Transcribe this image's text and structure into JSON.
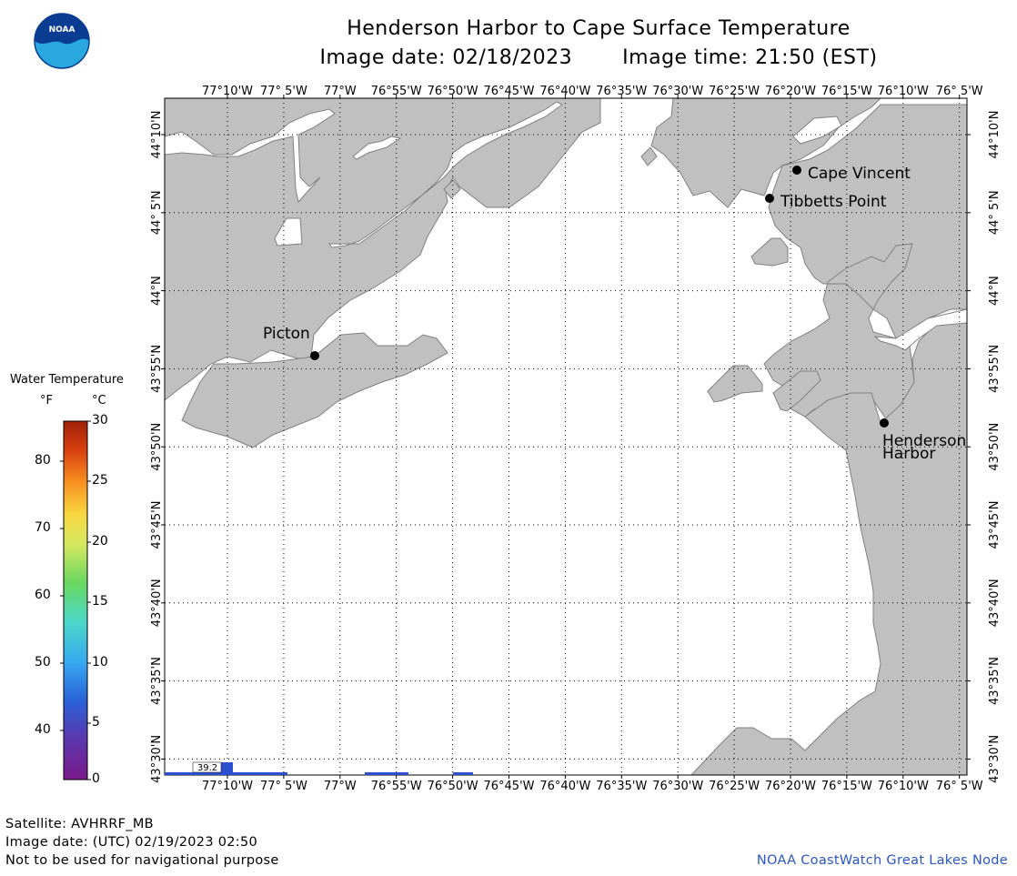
{
  "header": {
    "title": "Henderson Harbor to Cape Surface Temperature",
    "image_date_label": "Image date: 02/18/2023",
    "image_time_label": "Image time: 21:50 (EST)"
  },
  "logo": {
    "text": "NOAA",
    "color_dark": "#0a3d91",
    "color_light": "#29a8e0"
  },
  "legend": {
    "title": "Water Temperature",
    "unit_f": "°F",
    "unit_c": "°C",
    "fahrenheit_ticks": [
      "80",
      "70",
      "60",
      "50",
      "40"
    ],
    "celsius_ticks": [
      "30",
      "25",
      "20",
      "15",
      "10",
      "5",
      "0"
    ]
  },
  "map": {
    "land_color": "#c0c0c0",
    "water_color": "#ffffff",
    "longitude_labels": [
      "77°10'W",
      "77° 5'W",
      "77°W",
      "76°55'W",
      "76°50'W",
      "76°45'W",
      "76°40'W",
      "76°35'W",
      "76°30'W",
      "76°25'W",
      "76°20'W",
      "76°15'W",
      "76°10'W",
      "76° 5'W"
    ],
    "latitude_labels": [
      "44°10'N",
      "44° 5'N",
      "44°N",
      "43°55'N",
      "43°50'N",
      "43°45'N",
      "43°40'N",
      "43°35'N",
      "43°30'N"
    ],
    "places": {
      "cape_vincent": "Cape Vincent",
      "tibbetts_point": "Tibbetts Point",
      "picton": "Picton",
      "henderson_line1": "Henderson",
      "henderson_line2": "Harbor"
    },
    "temperature_readout": "39.2",
    "readout_color": "#2a50d0"
  },
  "footer": {
    "satellite": "Satellite: AVHRRF_MB",
    "utc_date": "Image date: (UTC) 02/19/2023  02:50",
    "disclaimer": "Not to be used for navigational purpose",
    "credit": "NOAA CoastWatch Great Lakes Node"
  }
}
